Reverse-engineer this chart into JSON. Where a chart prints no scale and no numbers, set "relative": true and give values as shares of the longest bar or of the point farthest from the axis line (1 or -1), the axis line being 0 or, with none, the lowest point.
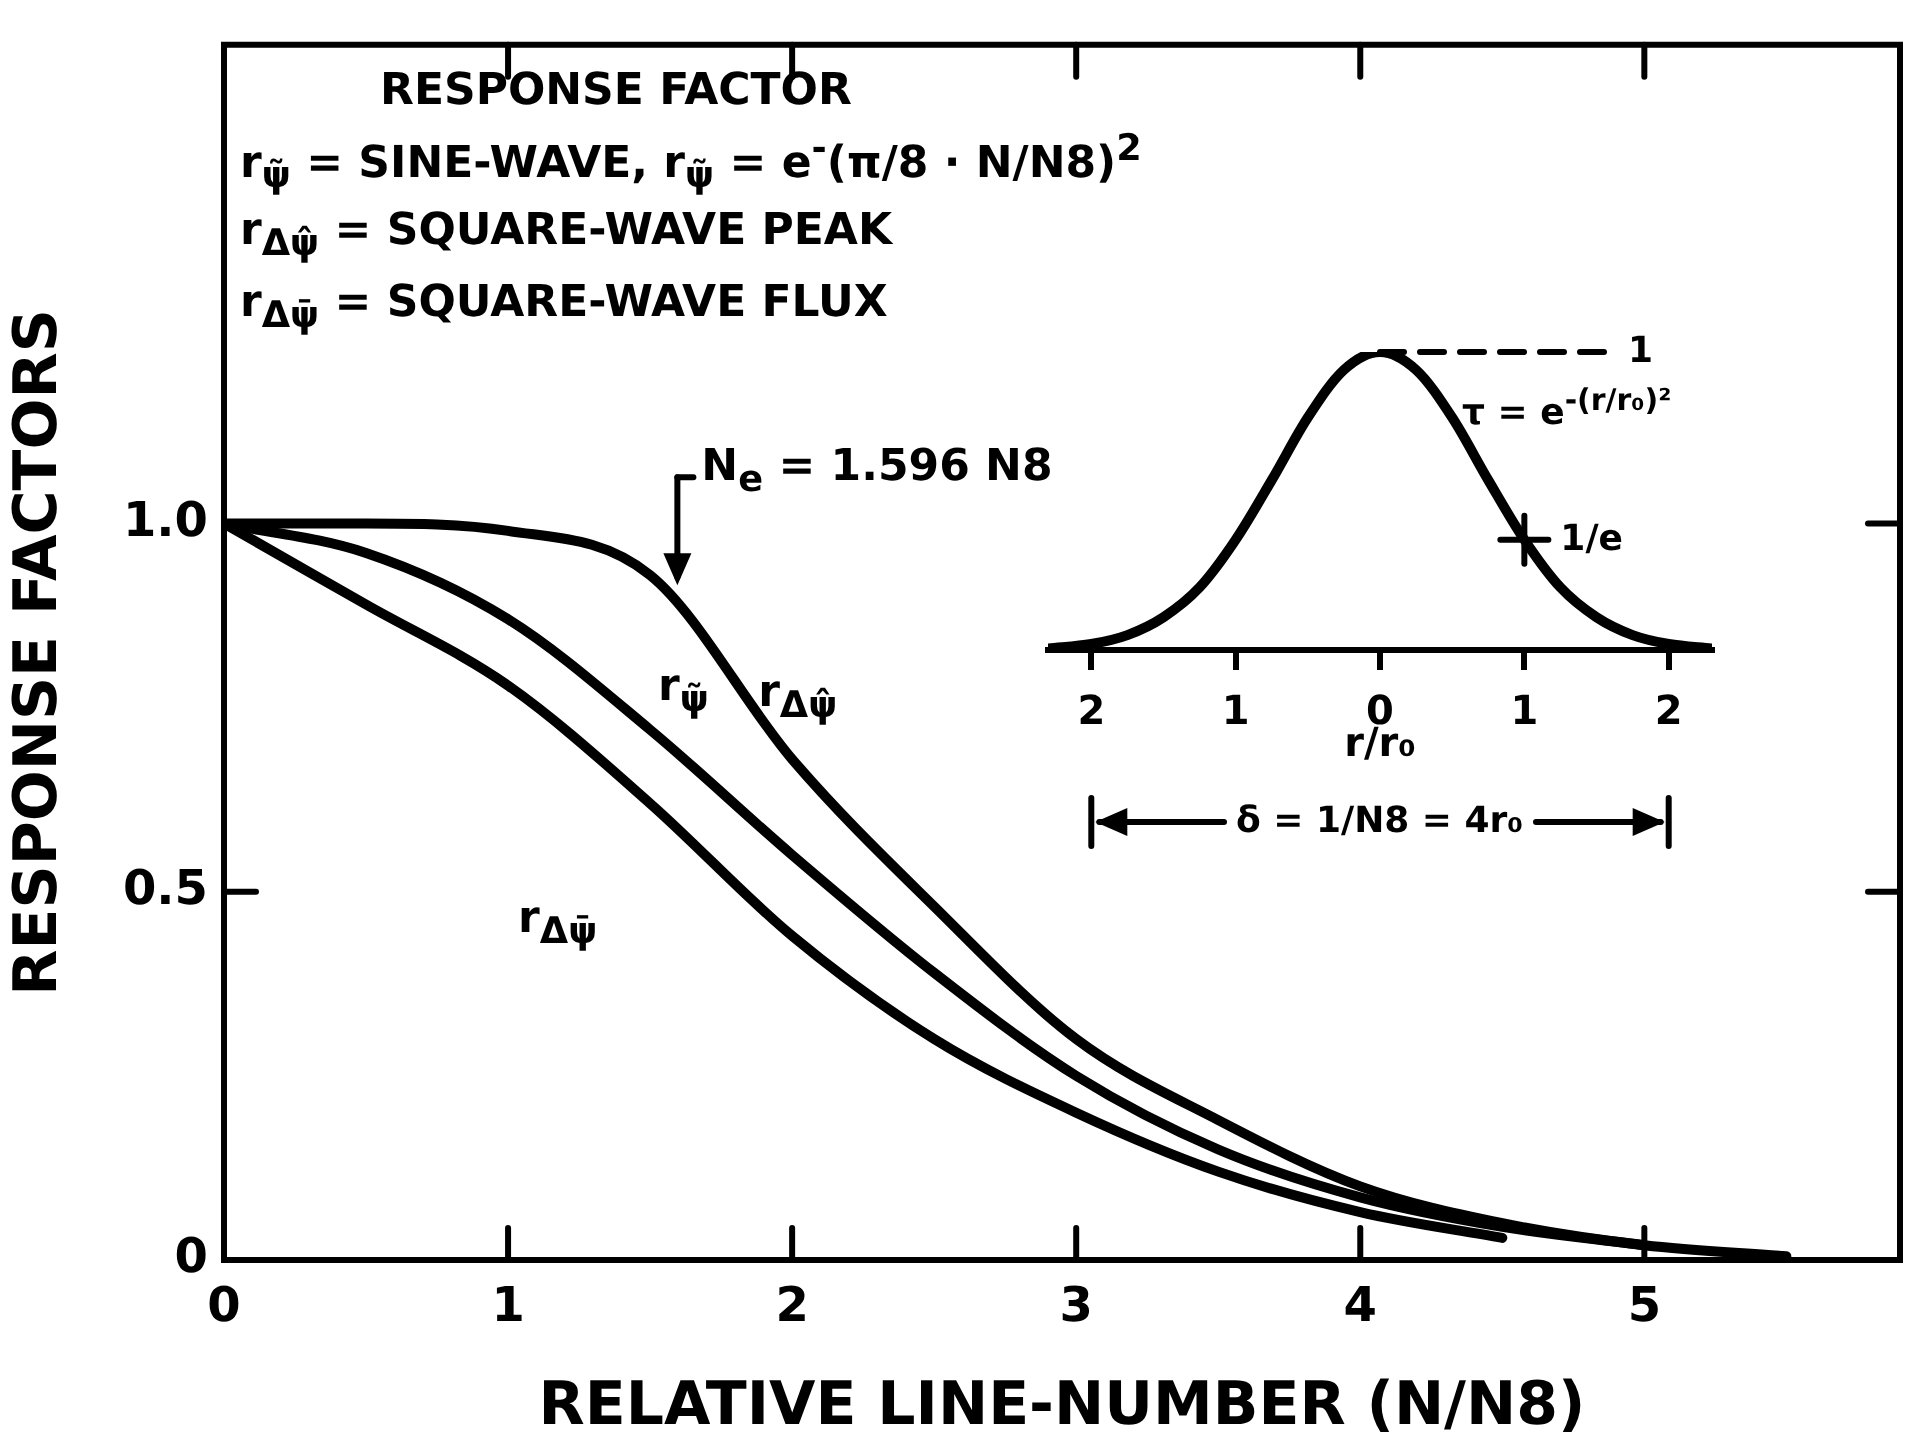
{
  "chart_data": [
    {
      "type": "line",
      "xlabel": "RELATIVE LINE-NUMBER (N/N8)",
      "ylabel": "RESPONSE FACTORS",
      "x": [
        0,
        0.5,
        1,
        1.5,
        2,
        2.5,
        3,
        3.5,
        4,
        4.5,
        5,
        5.5
      ],
      "series": [
        {
          "name": "r$_{Δψ̂}$",
          "color": "#000000",
          "values": [
            1,
            1,
            0.99,
            0.93,
            0.68,
            0.48,
            0.3,
            0.19,
            0.1,
            0.05,
            0.02,
            0.005
          ]
        },
        {
          "name": "r$_{ψ̃}$",
          "color": "#000000",
          "values": [
            1,
            0.96,
            0.87,
            0.72,
            0.55,
            0.39,
            0.25,
            0.15,
            0.085,
            0.045,
            0.02,
            null
          ]
        },
        {
          "name": "r$_{Δψ̄}$",
          "color": "#000000",
          "values": [
            1,
            0.89,
            0.78,
            0.62,
            0.44,
            0.3,
            0.2,
            0.12,
            0.065,
            0.03,
            null,
            null
          ]
        }
      ],
      "xlim": [
        0,
        5.9
      ],
      "ylim": [
        0,
        1.65
      ],
      "xticks": [
        0,
        1,
        2,
        3,
        4,
        5
      ],
      "yticks": [
        0,
        0.5,
        {
          "value": 1,
          "label": "1.0"
        }
      ],
      "annotations": [
        "RESPONSE FACTOR",
        "r$_{ψ̃}$ = SINE-WAVE, r$_{ψ̃}$ = e$^{-}$(π/8 · N/N8)$^{2}$",
        "r$_{Δψ̂}$ = SQUARE-WAVE PEAK",
        "r$_{Δψ̄}$ = SQUARE-WAVE FLUX",
        {
          "text": "N$_{e}$ = 1.596 N8",
          "x": 1.596,
          "y": 0.9
        }
      ]
    },
    {
      "type": "line",
      "relative": true,
      "xlabel": "r/r₀",
      "x": [
        -2.3,
        -2,
        -1.75,
        -1.5,
        -1.25,
        -1,
        -0.75,
        -0.5,
        -0.25,
        0,
        0.25,
        0.5,
        0.75,
        1,
        1.25,
        1.5,
        1.75,
        2,
        2.3
      ],
      "values": [
        0.005,
        0.02,
        0.05,
        0.11,
        0.21,
        0.37,
        0.57,
        0.78,
        0.94,
        1,
        0.94,
        0.78,
        0.57,
        0.37,
        0.21,
        0.11,
        0.05,
        0.02,
        0.005
      ],
      "color": "#000000",
      "xlim": [
        -2.3,
        2.3
      ],
      "xticks": [
        {
          "value": -2,
          "label": "2"
        },
        {
          "value": -1,
          "label": "1"
        },
        0,
        1,
        2
      ],
      "ref_lines": [
        {
          "axis": "y",
          "value": 1,
          "label": "1",
          "line_style": "dashed"
        }
      ],
      "annotations": [
        "τ = e$^{-(r/r₀)²}$",
        "δ = 1/N8 = 4r₀",
        {
          "text": "1/e",
          "x": 1,
          "y": 0.37
        }
      ]
    }
  ]
}
